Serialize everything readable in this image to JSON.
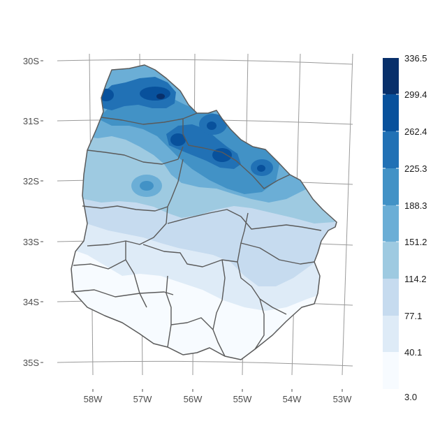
{
  "map": {
    "lat_labels": [
      "30S",
      "31S",
      "32S",
      "33S",
      "34S",
      "35S"
    ],
    "lon_labels": [
      "58W",
      "57W",
      "56W",
      "55W",
      "54W",
      "53W"
    ],
    "colors": {
      "graticule": "#9a9a9a",
      "border": "#5a5a5a",
      "tick_text": "#4d4d4d"
    }
  },
  "legend": {
    "breaks": [
      "336.5",
      "299.4",
      "262.4",
      "225.3",
      "188.3",
      "151.2",
      "114.2",
      "77.1",
      "40.1",
      "3.0"
    ],
    "colors": [
      "#08306b",
      "#08519c",
      "#2171b5",
      "#4292c6",
      "#6baed6",
      "#9ecae1",
      "#c6dbef",
      "#deebf7",
      "#f7fbff"
    ]
  }
}
